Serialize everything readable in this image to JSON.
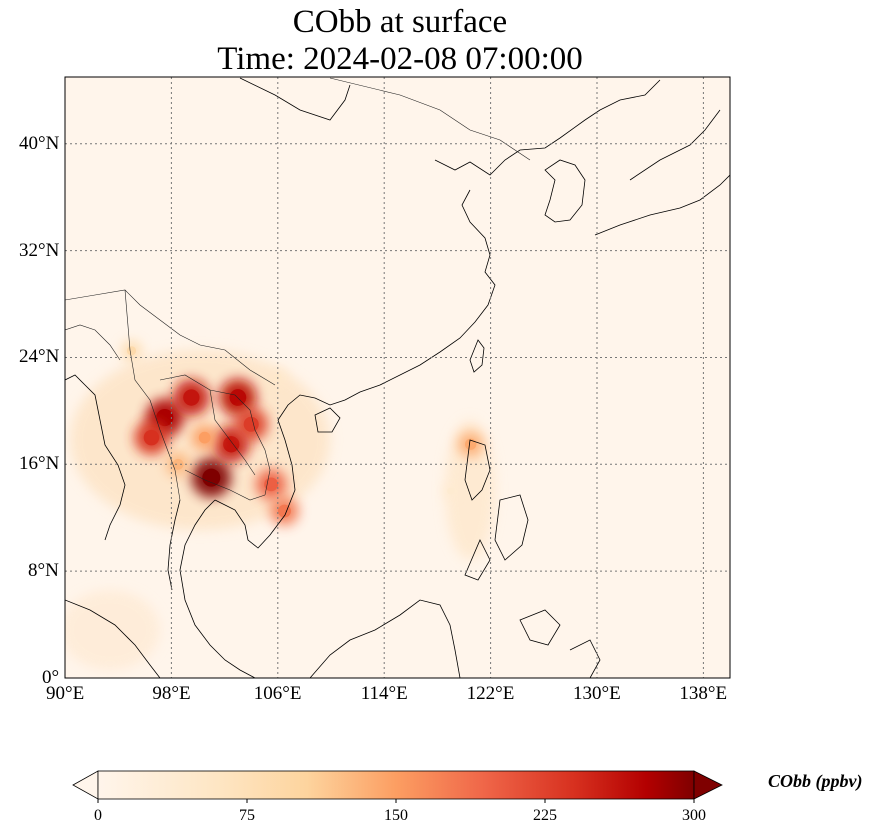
{
  "title_line1": "CObb at surface",
  "title_line2": "Time: 2024-02-08 07:00:00",
  "map": {
    "extent": {
      "lon": [
        90,
        140
      ],
      "lat": [
        0,
        45
      ]
    },
    "lon_ticks": [
      {
        "value": 90,
        "label": "90°E"
      },
      {
        "value": 98,
        "label": "98°E"
      },
      {
        "value": 106,
        "label": "106°E"
      },
      {
        "value": 114,
        "label": "114°E"
      },
      {
        "value": 122,
        "label": "122°E"
      },
      {
        "value": 130,
        "label": "130°E"
      },
      {
        "value": 138,
        "label": "138°E"
      }
    ],
    "lat_ticks": [
      {
        "value": 0,
        "label": "0°"
      },
      {
        "value": 8,
        "label": "8°N"
      },
      {
        "value": 16,
        "label": "16°N"
      },
      {
        "value": 24,
        "label": "24°N"
      },
      {
        "value": 32,
        "label": "32°N"
      },
      {
        "value": 40,
        "label": "40°N"
      }
    ],
    "gridlines": true,
    "background_color": "#fff5eb",
    "coastline_color": "#000000"
  },
  "colorbar": {
    "label": "CObb (ppbv)",
    "colormap": "OrRd",
    "min": 0,
    "max": 300,
    "extend": "both",
    "ticks": [
      {
        "value": 0,
        "label": "0"
      },
      {
        "value": 75,
        "label": "75"
      },
      {
        "value": 150,
        "label": "150"
      },
      {
        "value": 225,
        "label": "225"
      },
      {
        "value": 300,
        "label": "300"
      }
    ]
  },
  "hotspots": [
    {
      "lon": 97.5,
      "lat": 19.5,
      "value": 280
    },
    {
      "lon": 99.5,
      "lat": 21.0,
      "value": 260
    },
    {
      "lon": 96.5,
      "lat": 18.0,
      "value": 240
    },
    {
      "lon": 101.0,
      "lat": 15.0,
      "value": 300
    },
    {
      "lon": 102.5,
      "lat": 17.5,
      "value": 260
    },
    {
      "lon": 103.0,
      "lat": 21.0,
      "value": 270
    },
    {
      "lon": 104.0,
      "lat": 19.0,
      "value": 230
    },
    {
      "lon": 105.5,
      "lat": 14.5,
      "value": 200
    },
    {
      "lon": 106.5,
      "lat": 12.5,
      "value": 180
    },
    {
      "lon": 100.5,
      "lat": 18.0,
      "value": 150
    },
    {
      "lon": 98.5,
      "lat": 16.0,
      "value": 130
    },
    {
      "lon": 95.0,
      "lat": 24.5,
      "value": 90
    },
    {
      "lon": 120.5,
      "lat": 17.5,
      "value": 140
    },
    {
      "lon": 119.0,
      "lat": 14.0,
      "value": 40
    },
    {
      "lon": 106.0,
      "lat": 22.5,
      "value": 50
    }
  ]
}
